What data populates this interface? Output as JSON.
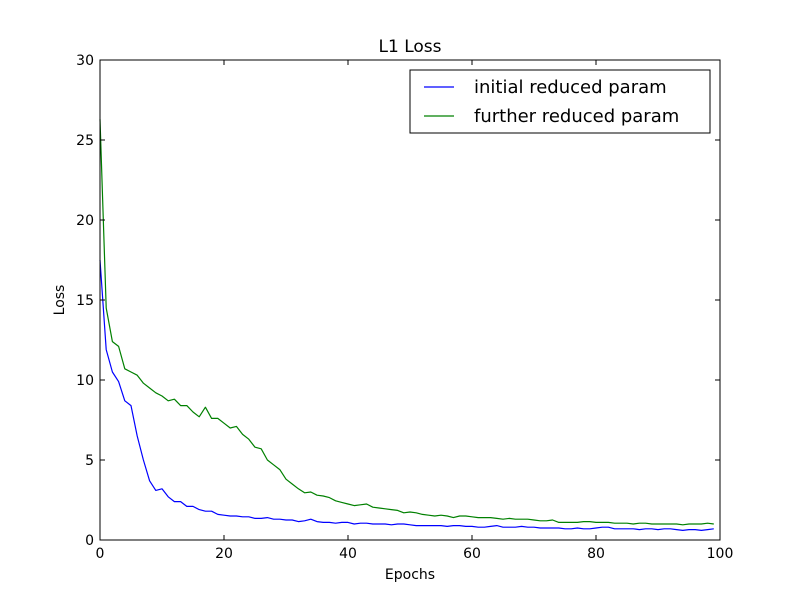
{
  "chart_data": {
    "type": "line",
    "title": "L1 Loss",
    "xlabel": "Epochs",
    "ylabel": "Loss",
    "xlim": [
      0,
      100
    ],
    "ylim": [
      0,
      30
    ],
    "xticks": [
      0,
      20,
      40,
      60,
      80,
      100
    ],
    "yticks": [
      0,
      5,
      10,
      15,
      20,
      25,
      30
    ],
    "grid": false,
    "legend_position": "top-right",
    "series": [
      {
        "name": "initial reduced param",
        "color": "#0000ff",
        "x": [
          0,
          1,
          2,
          3,
          4,
          5,
          6,
          7,
          8,
          9,
          10,
          11,
          12,
          13,
          14,
          15,
          16,
          17,
          18,
          19,
          20,
          21,
          22,
          23,
          24,
          25,
          26,
          27,
          28,
          29,
          30,
          31,
          32,
          33,
          34,
          35,
          36,
          37,
          38,
          39,
          40,
          41,
          42,
          43,
          44,
          45,
          46,
          47,
          48,
          49,
          50,
          51,
          52,
          53,
          54,
          55,
          56,
          57,
          58,
          59,
          60,
          61,
          62,
          63,
          64,
          65,
          66,
          67,
          68,
          69,
          70,
          71,
          72,
          73,
          74,
          75,
          76,
          77,
          78,
          79,
          80,
          81,
          82,
          83,
          84,
          85,
          86,
          87,
          88,
          89,
          90,
          91,
          92,
          93,
          94,
          95,
          96,
          97,
          98,
          99
        ],
        "y": [
          17.5,
          11.9,
          10.5,
          9.9,
          8.7,
          8.4,
          6.5,
          5.0,
          3.7,
          3.1,
          3.2,
          2.7,
          2.4,
          2.4,
          2.1,
          2.1,
          1.9,
          1.8,
          1.8,
          1.6,
          1.55,
          1.5,
          1.5,
          1.45,
          1.45,
          1.35,
          1.35,
          1.4,
          1.3,
          1.3,
          1.25,
          1.25,
          1.15,
          1.2,
          1.3,
          1.15,
          1.1,
          1.1,
          1.05,
          1.1,
          1.1,
          1.0,
          1.05,
          1.05,
          1.0,
          1.0,
          1.0,
          0.95,
          1.0,
          1.0,
          0.95,
          0.9,
          0.9,
          0.9,
          0.9,
          0.9,
          0.85,
          0.9,
          0.9,
          0.85,
          0.85,
          0.8,
          0.8,
          0.85,
          0.9,
          0.8,
          0.8,
          0.8,
          0.85,
          0.8,
          0.8,
          0.75,
          0.75,
          0.75,
          0.75,
          0.7,
          0.7,
          0.75,
          0.7,
          0.7,
          0.75,
          0.8,
          0.8,
          0.7,
          0.7,
          0.7,
          0.7,
          0.65,
          0.7,
          0.7,
          0.65,
          0.7,
          0.7,
          0.65,
          0.6,
          0.65,
          0.65,
          0.6,
          0.65,
          0.7
        ]
      },
      {
        "name": "further reduced param",
        "color": "#008000",
        "x": [
          0,
          1,
          2,
          3,
          4,
          5,
          6,
          7,
          8,
          9,
          10,
          11,
          12,
          13,
          14,
          15,
          16,
          17,
          18,
          19,
          20,
          21,
          22,
          23,
          24,
          25,
          26,
          27,
          28,
          29,
          30,
          31,
          32,
          33,
          34,
          35,
          36,
          37,
          38,
          39,
          40,
          41,
          42,
          43,
          44,
          45,
          46,
          47,
          48,
          49,
          50,
          51,
          52,
          53,
          54,
          55,
          56,
          57,
          58,
          59,
          60,
          61,
          62,
          63,
          64,
          65,
          66,
          67,
          68,
          69,
          70,
          71,
          72,
          73,
          74,
          75,
          76,
          77,
          78,
          79,
          80,
          81,
          82,
          83,
          84,
          85,
          86,
          87,
          88,
          89,
          90,
          91,
          92,
          93,
          94,
          95,
          96,
          97,
          98,
          99
        ],
        "y": [
          26.3,
          14.5,
          12.4,
          12.1,
          10.7,
          10.5,
          10.3,
          9.8,
          9.5,
          9.2,
          9.0,
          8.7,
          8.8,
          8.4,
          8.4,
          8.0,
          7.7,
          8.3,
          7.6,
          7.6,
          7.3,
          7.0,
          7.1,
          6.6,
          6.3,
          5.8,
          5.7,
          5.0,
          4.7,
          4.4,
          3.8,
          3.5,
          3.2,
          2.95,
          3.0,
          2.8,
          2.75,
          2.65,
          2.45,
          2.35,
          2.25,
          2.15,
          2.2,
          2.25,
          2.05,
          2.0,
          1.95,
          1.9,
          1.85,
          1.7,
          1.75,
          1.7,
          1.6,
          1.55,
          1.5,
          1.55,
          1.5,
          1.4,
          1.5,
          1.5,
          1.45,
          1.4,
          1.4,
          1.4,
          1.35,
          1.3,
          1.35,
          1.3,
          1.3,
          1.3,
          1.25,
          1.2,
          1.2,
          1.25,
          1.1,
          1.1,
          1.1,
          1.1,
          1.15,
          1.15,
          1.1,
          1.1,
          1.1,
          1.05,
          1.05,
          1.05,
          1.0,
          1.05,
          1.05,
          1.0,
          1.0,
          1.0,
          1.0,
          1.0,
          0.95,
          1.0,
          1.0,
          1.0,
          1.05,
          1.0
        ]
      }
    ]
  }
}
